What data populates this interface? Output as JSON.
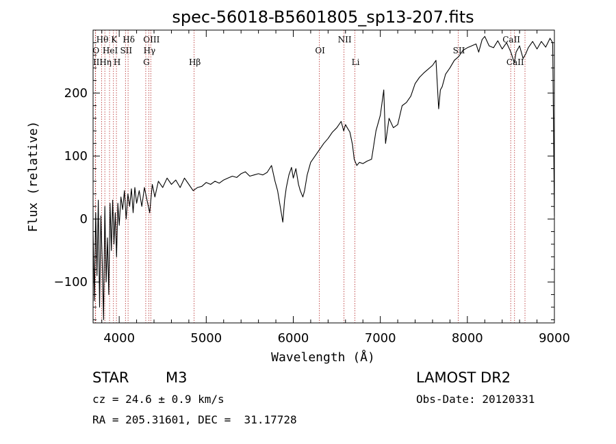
{
  "chart_data": {
    "type": "line",
    "title": "spec-56018-B5601805_sp13-207.fits",
    "xlabel": "Wavelength (Å)",
    "ylabel": "Flux (relative)",
    "xlim": [
      3700,
      9000
    ],
    "ylim": [
      -165,
      300
    ],
    "x_ticks": [
      4000,
      5000,
      6000,
      7000,
      8000,
      9000
    ],
    "x_tick_labels": [
      "4000",
      "5000",
      "6000",
      "7000",
      "8000",
      "9000"
    ],
    "y_ticks": [
      -100,
      0,
      100,
      200
    ],
    "y_tick_labels": [
      "−100",
      "0",
      "100",
      "200"
    ],
    "grid": false,
    "line_color": "#000000",
    "marker_color": "#b22222",
    "series": [
      {
        "name": "flux",
        "points": [
          [
            3700,
            -20
          ],
          [
            3715,
            -130
          ],
          [
            3730,
            10
          ],
          [
            3745,
            -90
          ],
          [
            3760,
            30
          ],
          [
            3775,
            -140
          ],
          [
            3790,
            5
          ],
          [
            3805,
            -70
          ],
          [
            3820,
            -160
          ],
          [
            3835,
            20
          ],
          [
            3850,
            -100
          ],
          [
            3865,
            -30
          ],
          [
            3880,
            -120
          ],
          [
            3895,
            25
          ],
          [
            3910,
            -50
          ],
          [
            3925,
            30
          ],
          [
            3940,
            -40
          ],
          [
            3955,
            10
          ],
          [
            3970,
            -60
          ],
          [
            3985,
            25
          ],
          [
            4000,
            -10
          ],
          [
            4020,
            35
          ],
          [
            4040,
            15
          ],
          [
            4060,
            45
          ],
          [
            4080,
            0
          ],
          [
            4100,
            40
          ],
          [
            4120,
            20
          ],
          [
            4140,
            48
          ],
          [
            4160,
            10
          ],
          [
            4180,
            50
          ],
          [
            4200,
            25
          ],
          [
            4230,
            45
          ],
          [
            4260,
            20
          ],
          [
            4290,
            50
          ],
          [
            4320,
            30
          ],
          [
            4350,
            10
          ],
          [
            4380,
            55
          ],
          [
            4410,
            35
          ],
          [
            4450,
            60
          ],
          [
            4500,
            50
          ],
          [
            4550,
            65
          ],
          [
            4600,
            55
          ],
          [
            4650,
            62
          ],
          [
            4700,
            50
          ],
          [
            4750,
            65
          ],
          [
            4800,
            55
          ],
          [
            4850,
            45
          ],
          [
            4900,
            50
          ],
          [
            4950,
            52
          ],
          [
            5000,
            58
          ],
          [
            5050,
            55
          ],
          [
            5100,
            60
          ],
          [
            5150,
            57
          ],
          [
            5200,
            62
          ],
          [
            5250,
            65
          ],
          [
            5300,
            68
          ],
          [
            5350,
            66
          ],
          [
            5400,
            72
          ],
          [
            5450,
            75
          ],
          [
            5500,
            68
          ],
          [
            5550,
            70
          ],
          [
            5600,
            72
          ],
          [
            5650,
            70
          ],
          [
            5700,
            74
          ],
          [
            5750,
            85
          ],
          [
            5790,
            60
          ],
          [
            5820,
            45
          ],
          [
            5850,
            20
          ],
          [
            5880,
            -5
          ],
          [
            5900,
            30
          ],
          [
            5920,
            50
          ],
          [
            5950,
            70
          ],
          [
            5980,
            82
          ],
          [
            6000,
            65
          ],
          [
            6030,
            80
          ],
          [
            6060,
            55
          ],
          [
            6080,
            45
          ],
          [
            6110,
            35
          ],
          [
            6130,
            45
          ],
          [
            6160,
            70
          ],
          [
            6200,
            90
          ],
          [
            6250,
            100
          ],
          [
            6300,
            110
          ],
          [
            6350,
            120
          ],
          [
            6400,
            128
          ],
          [
            6450,
            138
          ],
          [
            6500,
            145
          ],
          [
            6550,
            155
          ],
          [
            6580,
            140
          ],
          [
            6600,
            150
          ],
          [
            6620,
            145
          ],
          [
            6650,
            138
          ],
          [
            6680,
            118
          ],
          [
            6700,
            95
          ],
          [
            6730,
            85
          ],
          [
            6760,
            90
          ],
          [
            6800,
            88
          ],
          [
            6850,
            92
          ],
          [
            6900,
            95
          ],
          [
            6950,
            140
          ],
          [
            7000,
            165
          ],
          [
            7040,
            205
          ],
          [
            7060,
            120
          ],
          [
            7100,
            160
          ],
          [
            7150,
            145
          ],
          [
            7200,
            150
          ],
          [
            7250,
            180
          ],
          [
            7300,
            185
          ],
          [
            7350,
            195
          ],
          [
            7400,
            215
          ],
          [
            7450,
            225
          ],
          [
            7500,
            232
          ],
          [
            7550,
            238
          ],
          [
            7600,
            244
          ],
          [
            7640,
            252
          ],
          [
            7670,
            175
          ],
          [
            7690,
            205
          ],
          [
            7710,
            210
          ],
          [
            7750,
            230
          ],
          [
            7800,
            240
          ],
          [
            7850,
            252
          ],
          [
            7900,
            258
          ],
          [
            7950,
            268
          ],
          [
            8000,
            272
          ],
          [
            8050,
            275
          ],
          [
            8100,
            278
          ],
          [
            8130,
            265
          ],
          [
            8170,
            285
          ],
          [
            8200,
            290
          ],
          [
            8250,
            275
          ],
          [
            8300,
            272
          ],
          [
            8350,
            283
          ],
          [
            8400,
            270
          ],
          [
            8450,
            280
          ],
          [
            8500,
            265
          ],
          [
            8540,
            248
          ],
          [
            8560,
            265
          ],
          [
            8600,
            275
          ],
          [
            8640,
            255
          ],
          [
            8670,
            262
          ],
          [
            8700,
            272
          ],
          [
            8750,
            282
          ],
          [
            8800,
            270
          ],
          [
            8850,
            282
          ],
          [
            8900,
            273
          ],
          [
            8950,
            287
          ],
          [
            8980,
            280
          ],
          [
            9000,
            5
          ]
        ]
      }
    ],
    "line_markers": [
      {
        "label": "Hθ",
        "wavelength": 3798,
        "row": 1
      },
      {
        "label": "O",
        "wavelength": 3726,
        "row": 2
      },
      {
        "label": "II",
        "wavelength": 3729,
        "row": 3
      },
      {
        "label": "Hη",
        "wavelength": 3835,
        "row": 3
      },
      {
        "label": "H",
        "wavelength": 3968,
        "row": 3
      },
      {
        "label": "K",
        "wavelength": 3934,
        "row": 1
      },
      {
        "label": "HeI",
        "wavelength": 3889,
        "row": 2
      },
      {
        "label": "SII",
        "wavelength": 4072,
        "row": 2
      },
      {
        "label": "Hδ",
        "wavelength": 4102,
        "row": 1
      },
      {
        "label": "OIII",
        "wavelength": 4363,
        "row": 1
      },
      {
        "label": "Hγ",
        "wavelength": 4340,
        "row": 2
      },
      {
        "label": "G",
        "wavelength": 4305,
        "row": 3
      },
      {
        "label": "Hβ",
        "wavelength": 4861,
        "row": 3
      },
      {
        "label": "OI",
        "wavelength": 6300,
        "row": 2
      },
      {
        "label": "NII",
        "wavelength": 6583,
        "row": 1
      },
      {
        "label": "Li",
        "wavelength": 6708,
        "row": 3
      },
      {
        "label": "SII",
        "wavelength": 7895,
        "row": 2
      },
      {
        "label": "CaII",
        "wavelength": 8498,
        "row": 1
      },
      {
        "label": "CaII",
        "wavelength": 8542,
        "row": 3
      },
      {
        "label": "",
        "wavelength": 8662,
        "row": 0
      }
    ]
  },
  "info": {
    "object_class": "STAR",
    "subclass": "M3",
    "survey": "LAMOST DR2",
    "redshift_line": "cz = 24.6 ± 0.9 km/s",
    "obs_date": "Obs-Date: 20120331",
    "coords": "RA = 205.31601, DEC =  31.17728"
  }
}
